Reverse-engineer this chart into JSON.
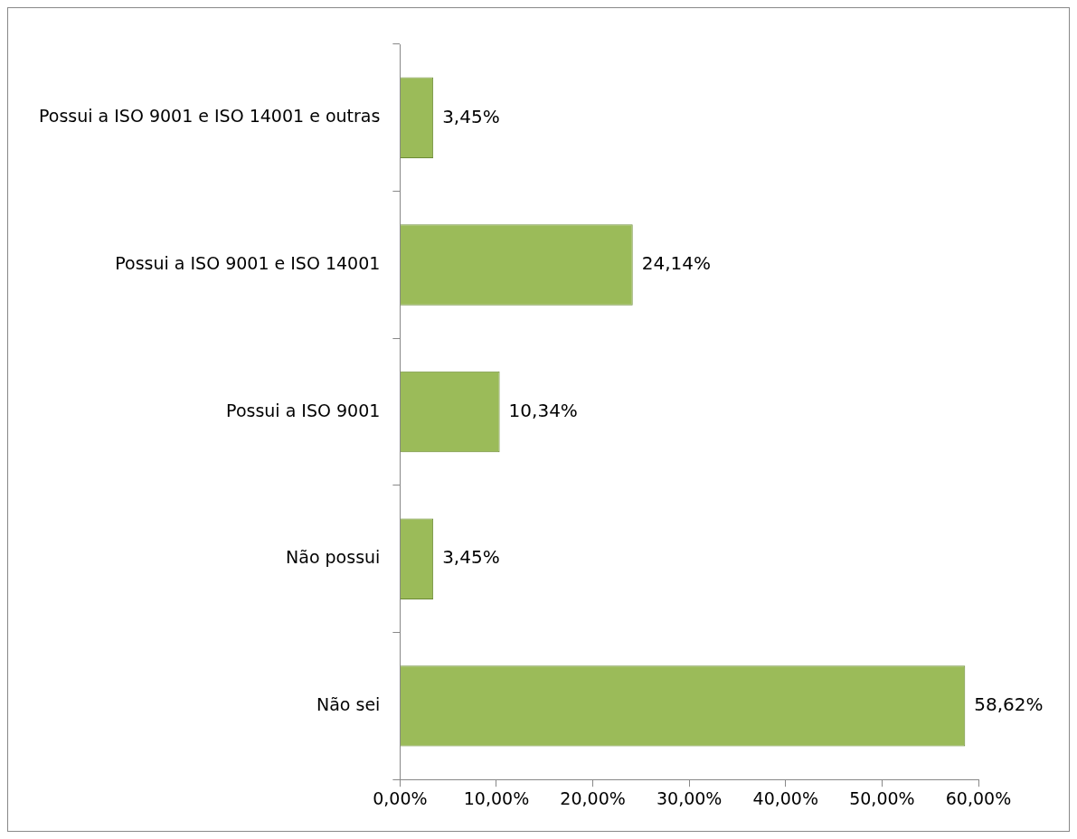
{
  "chart_data": {
    "type": "bar",
    "orientation": "horizontal",
    "categories": [
      "Possui a ISO 9001 e ISO 14001 e outras",
      "Possui a ISO 9001 e ISO 14001",
      "Possui a ISO 9001",
      "Não possui",
      "Não sei"
    ],
    "values": [
      3.45,
      24.14,
      10.34,
      3.45,
      58.62
    ],
    "value_labels": [
      "3,45%",
      "24,14%",
      "10,34%",
      "3,45%",
      "58,62%"
    ],
    "color": "#9bbb59",
    "xlim": [
      0,
      60
    ],
    "xticks": [
      {
        "value": 0,
        "label": "0,00%"
      },
      {
        "value": 10,
        "label": "10,00%"
      },
      {
        "value": 20,
        "label": "20,00%"
      },
      {
        "value": 30,
        "label": "30,00%"
      },
      {
        "value": 40,
        "label": "40,00%"
      },
      {
        "value": 50,
        "label": "50,00%"
      },
      {
        "value": 60,
        "label": "60,00%"
      }
    ],
    "grid": false,
    "legend": false
  }
}
